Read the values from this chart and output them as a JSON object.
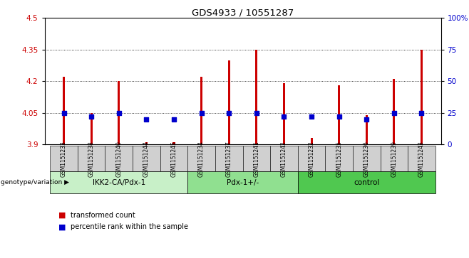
{
  "title": "GDS4933 / 10551287",
  "samples": [
    "GSM1151233",
    "GSM1151238",
    "GSM1151240",
    "GSM1151244",
    "GSM1151245",
    "GSM1151234",
    "GSM1151237",
    "GSM1151241",
    "GSM1151242",
    "GSM1151232",
    "GSM1151235",
    "GSM1151236",
    "GSM1151239",
    "GSM1151243"
  ],
  "transformed_count": [
    4.22,
    4.05,
    4.2,
    3.91,
    3.91,
    4.22,
    4.3,
    4.35,
    4.19,
    3.93,
    4.18,
    4.04,
    4.21,
    4.35
  ],
  "percentile_rank": [
    25,
    22,
    25,
    20,
    20,
    25,
    25,
    25,
    22,
    22,
    22,
    20,
    25,
    25
  ],
  "groups": [
    {
      "label": "IKK2-CA/Pdx-1",
      "start": 0,
      "end": 5,
      "color": "#c8f0c8"
    },
    {
      "label": "Pdx-1+/-",
      "start": 5,
      "end": 9,
      "color": "#90e090"
    },
    {
      "label": "control",
      "start": 9,
      "end": 14,
      "color": "#50c850"
    }
  ],
  "ylim_left": [
    3.9,
    4.5
  ],
  "ylim_right": [
    0,
    100
  ],
  "yticks_left": [
    3.9,
    4.05,
    4.2,
    4.35,
    4.5
  ],
  "ytick_labels_left": [
    "3.9",
    "4.05",
    "4.2",
    "4.35",
    "4.5"
  ],
  "yticks_right": [
    0,
    25,
    50,
    75,
    100
  ],
  "ytick_labels_right": [
    "0",
    "25",
    "50",
    "75",
    "100%"
  ],
  "grid_lines": [
    4.05,
    4.2,
    4.35
  ],
  "bar_color": "#cc0000",
  "dot_color": "#0000cc",
  "bar_bottom": 3.9,
  "background_plot": "#ffffff",
  "sample_box_color": "#d0d0d0",
  "bar_width": 0.08
}
